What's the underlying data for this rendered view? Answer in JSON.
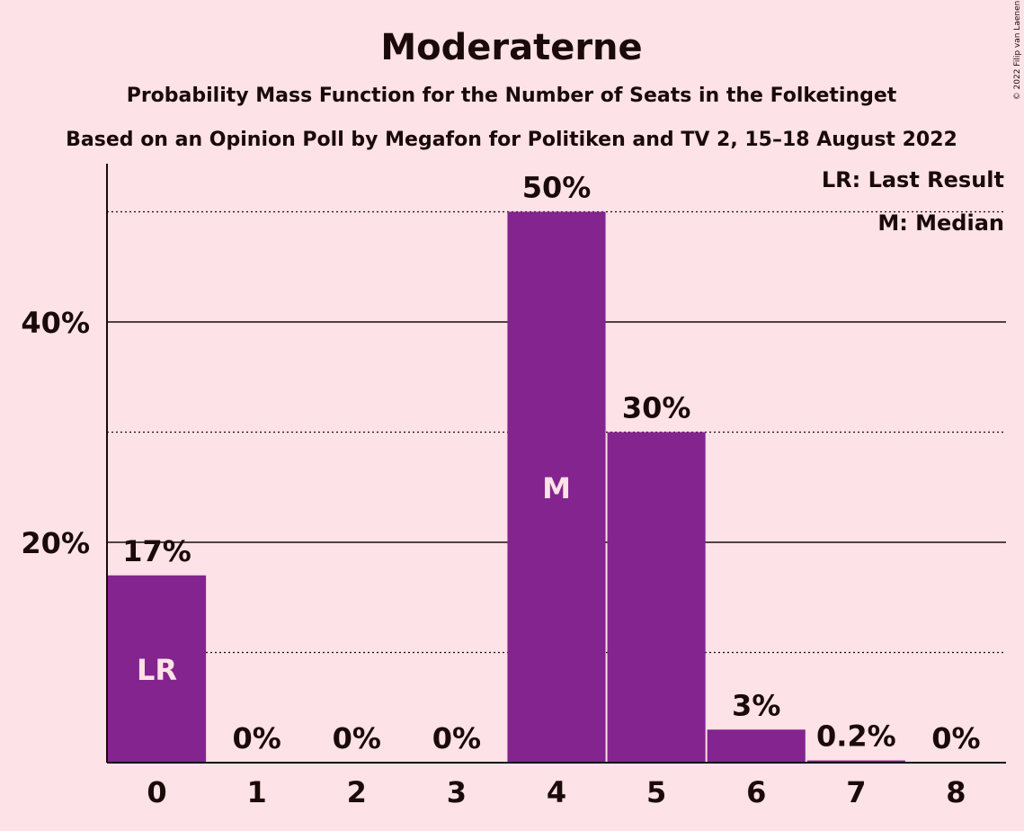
{
  "chart_data": {
    "type": "bar",
    "title": "Moderaterne",
    "subtitle": "Probability Mass Function for the Number of Seats in the Folketinget",
    "subtitle2": "Based on an Opinion Poll by Megafon for Politiken and TV 2, 15–18 August 2022",
    "copyright": "© 2022 Filip van Laenen",
    "categories": [
      "0",
      "1",
      "2",
      "3",
      "4",
      "5",
      "6",
      "7",
      "8"
    ],
    "values": [
      17,
      0,
      0,
      0,
      50,
      30,
      3,
      0.2,
      0
    ],
    "value_labels": [
      "17%",
      "0%",
      "0%",
      "0%",
      "50%",
      "30%",
      "3%",
      "0.2%",
      "0%"
    ],
    "ylim": [
      0,
      54
    ],
    "yticks": [
      20,
      40
    ],
    "ytick_labels": [
      "20%",
      "40%"
    ],
    "minor_gridlines": [
      10,
      30,
      50
    ],
    "bar_markers": [
      {
        "category": "0",
        "label": "LR"
      },
      {
        "category": "4",
        "label": "M"
      }
    ],
    "legend": [
      "LR: Last Result",
      "M: Median"
    ],
    "legend_position": "top-right",
    "colors": {
      "bar": "#84248e",
      "background": "#fde2e7",
      "text": "#1a0a0a",
      "marker_text": "#fde2e7"
    }
  }
}
